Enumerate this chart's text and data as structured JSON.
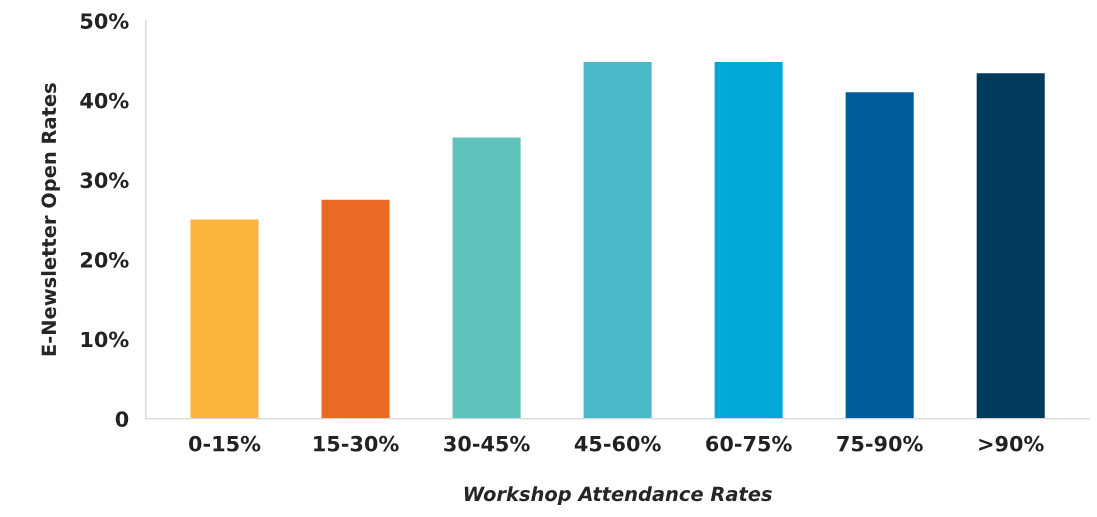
{
  "chart_data": {
    "type": "bar",
    "xlabel": "Workshop Attendance Rates",
    "ylabel": "E-Newsletter Open Rates",
    "categories": [
      "0-15%",
      "15-30%",
      "30-45%",
      "45-60%",
      "60-75%",
      "75-90%",
      ">90%"
    ],
    "values": [
      25.1,
      27.6,
      35.4,
      44.9,
      44.9,
      41.1,
      43.5
    ],
    "colors": [
      "#f9b53d",
      "#eb6a23",
      "#5ec4bc",
      "#4bbac8",
      "#00a8d8",
      "#005b9a",
      "#003a5d"
    ],
    "ylim": [
      0,
      50
    ],
    "yticks": [
      {
        "value": 0,
        "label": "0"
      },
      {
        "value": 10,
        "label": "10%"
      },
      {
        "value": 20,
        "label": "20%"
      },
      {
        "value": 30,
        "label": "30%"
      },
      {
        "value": 40,
        "label": "40%"
      },
      {
        "value": 50,
        "label": "50%"
      }
    ],
    "grid": false,
    "legend": false
  }
}
